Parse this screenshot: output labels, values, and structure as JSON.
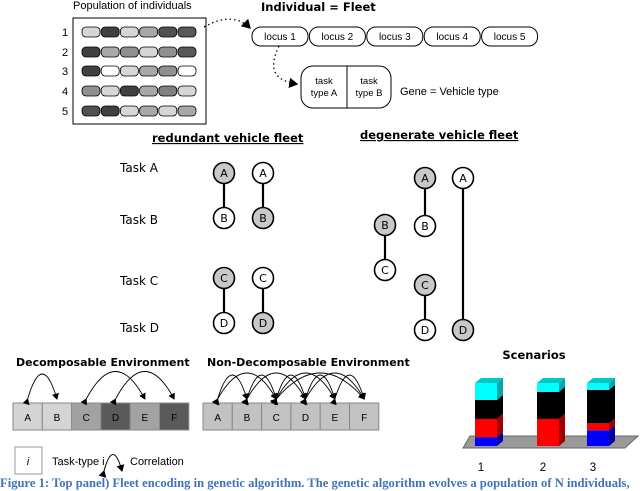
{
  "population": {
    "title": "Population of individuals",
    "row_labels": [
      "1",
      "2",
      "3",
      "4",
      "5"
    ],
    "gene_shades": [
      [
        "#d6d6d6",
        "#404040",
        "#d6d6d6",
        "#a8a8a8",
        "#505050",
        "#585858"
      ],
      [
        "#404040",
        "#a8a8a8",
        "#909090",
        "#d6d6d6",
        "#909090",
        "#585858"
      ],
      [
        "#404040",
        "#ffffff",
        "#d6d6d6",
        "#a8a8a8",
        "#909090",
        "#ffffff"
      ],
      [
        "#909090",
        "#d6d6d6",
        "#404040",
        "#a8a8a8",
        "#808080",
        "#d6d6d6"
      ],
      [
        "#505050",
        "#404040",
        "#d6d6d6",
        "#a8a8a8",
        "#d6d6d6",
        "#a8a8a8"
      ]
    ]
  },
  "individual": {
    "title": "Individual = Fleet",
    "loci": [
      "locus 1",
      "locus 2",
      "locus 3",
      "locus 4",
      "locus 5"
    ],
    "gene_left": [
      "task",
      "type A"
    ],
    "gene_right": [
      "task",
      "type B"
    ],
    "gene_label": "Gene = Vehicle type"
  },
  "fleets": {
    "redundant_title": "redundant vehicle fleet",
    "degenerate_title": "degenerate vehicle fleet",
    "task_labels": [
      "Task A",
      "Task B",
      "Task C",
      "Task D"
    ],
    "node_colors": {
      "gray": "#c8c8c8",
      "white": "#ffffff"
    }
  },
  "environments": {
    "decomposable_title": "Decomposable Environment",
    "non_decomposable_title": "Non-Decomposable Environment",
    "tasks": [
      "A",
      "B",
      "C",
      "D",
      "E",
      "F"
    ],
    "decomposable_shades": [
      "#d4d4d4",
      "#d4d4d4",
      "#a2a2a2",
      "#5a5a5a",
      "#a2a2a2",
      "#5a5a5a"
    ],
    "non_decomposable_shade": "#c2c2c2",
    "legend": {
      "symbol": "i",
      "task_label": "Task-type i",
      "correlation_label": "Correlation"
    }
  },
  "scenarios": {
    "title": "Scenarios",
    "labels": [
      "1",
      "2",
      "3"
    ],
    "colors": {
      "cyan": "#00ffff",
      "black": "#000000",
      "red": "#ff0000",
      "blue": "#0000ff"
    },
    "stacks_percent": [
      {
        "blue": 14,
        "red": 29,
        "black": 30,
        "cyan": 27
      },
      {
        "blue": 0,
        "red": 43,
        "black": 43,
        "cyan": 14
      },
      {
        "blue": 25,
        "red": 11,
        "black": 53,
        "cyan": 11
      }
    ]
  },
  "caption": "Figure 1: Top panel) Fleet encoding in genetic algorithm. The genetic algorithm evolves a population of N individuals,"
}
